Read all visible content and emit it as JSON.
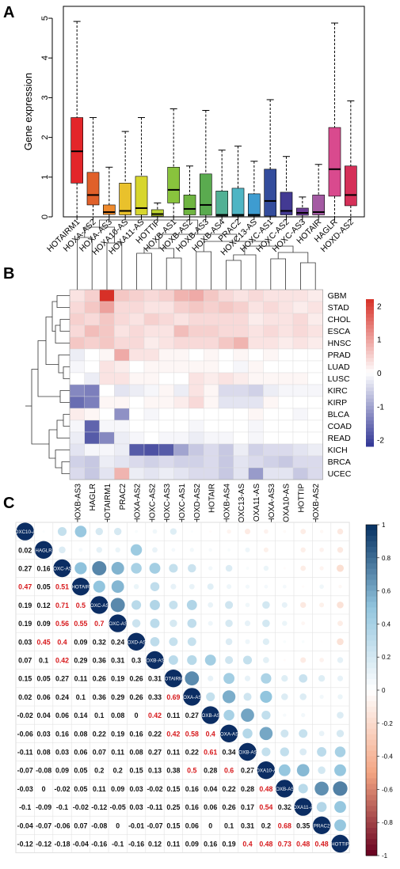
{
  "panels": {
    "a": "A",
    "b": "B",
    "c": "C"
  },
  "chart_data": [
    {
      "type": "box",
      "ylabel": "Gene expression",
      "ylim": [
        0,
        5.3
      ],
      "yticks": [
        0,
        1,
        2,
        3,
        4,
        5
      ],
      "categories": [
        "HOTAIRM1",
        "HOXA-AS2",
        "HOXA-AS3",
        "HOXA10-AS",
        "HOXA11-AS",
        "HOTTIP",
        "HOXB-AS1",
        "HOXB-AS2",
        "HOXB-AS3",
        "HOXB-AS4",
        "PRAC2",
        "HOXC13-AS",
        "HOXC-AS1",
        "HOXC-AS2",
        "HOXC-AS3",
        "HOTAIR",
        "HAGLR",
        "HOXD-AS2"
      ],
      "colors": [
        "#e3262a",
        "#e0602a",
        "#ef8a2c",
        "#e9c12c",
        "#d7d62d",
        "#bdd431",
        "#89c33d",
        "#6fb541",
        "#5aab4f",
        "#52b195",
        "#4fb5c4",
        "#3e9cd0",
        "#334c9c",
        "#433a93",
        "#6c3d96",
        "#a45aa3",
        "#d94a8e",
        "#d53058"
      ],
      "q1": [
        0.85,
        0.3,
        0.06,
        0.05,
        0.05,
        0.02,
        0.35,
        0.05,
        0.04,
        0.02,
        0.02,
        0.02,
        0.02,
        0.05,
        0.04,
        0.05,
        0.52,
        0.28
      ],
      "median": [
        1.65,
        0.55,
        0.12,
        0.15,
        0.22,
        0.07,
        0.68,
        0.2,
        0.3,
        0.05,
        0.05,
        0.05,
        0.4,
        0.15,
        0.1,
        0.12,
        1.2,
        0.55
      ],
      "q3": [
        2.5,
        1.12,
        0.3,
        0.85,
        1.02,
        0.18,
        1.25,
        0.55,
        1.08,
        0.65,
        0.72,
        0.58,
        1.2,
        0.62,
        0.22,
        0.55,
        2.25,
        1.28
      ],
      "whisker_low": [
        0,
        0,
        0,
        0,
        0,
        0,
        0,
        0,
        0,
        0,
        0,
        0,
        0,
        0,
        0,
        0,
        0,
        0
      ],
      "whisker_high": [
        4.92,
        2.5,
        1.25,
        2.15,
        2.5,
        0.35,
        2.72,
        1.28,
        2.68,
        1.68,
        1.78,
        1.4,
        2.95,
        1.52,
        0.5,
        1.32,
        4.88,
        2.92
      ]
    },
    {
      "type": "heatmap",
      "columns": [
        "HOXB-AS3",
        "HAGLR",
        "HOTAIRM1",
        "PRAC2",
        "HOXA-AS2",
        "HOXC-AS2",
        "HOXC-AS3",
        "HOXC-AS1",
        "HOXD-AS2",
        "HOTAIR",
        "HOXB-AS4",
        "HOXC13-AS",
        "HOXA11-AS",
        "HOXA-AS3",
        "HOXA10-AS",
        "HOTTIP",
        "HOXB-AS2"
      ],
      "rows": [
        "GBM",
        "STAD",
        "CHOL",
        "ESCA",
        "HNSC",
        "PRAD",
        "LUAD",
        "LUSC",
        "KIRC",
        "KIRP",
        "BLCA",
        "COAD",
        "READ",
        "KICH",
        "BRCA",
        "UCEC"
      ],
      "legend_ticks": [
        2,
        1,
        0,
        -1,
        -2
      ],
      "legend_range": [
        -2.2,
        2.2
      ],
      "values": [
        [
          0.3,
          0.5,
          2.2,
          0.6,
          0.5,
          0.4,
          0.5,
          0.8,
          0.9,
          0.6,
          0.4,
          0.3,
          0.4,
          0.3,
          0.3,
          0.3,
          0.2
        ],
        [
          0.4,
          0.6,
          1.0,
          0.4,
          0.4,
          0.3,
          0.3,
          0.5,
          0.6,
          0.5,
          0.6,
          0.5,
          0.3,
          0.4,
          0.3,
          0.2,
          0.3
        ],
        [
          0.5,
          0.4,
          0.6,
          0.4,
          0.3,
          0.5,
          0.4,
          0.3,
          0.4,
          0.4,
          0.4,
          0.4,
          0.2,
          0.3,
          0.3,
          0.4,
          0.2
        ],
        [
          0.4,
          0.7,
          0.6,
          0.3,
          0.4,
          0.3,
          0.3,
          0.7,
          0.5,
          0.5,
          0.4,
          0.4,
          0.3,
          0.4,
          0.3,
          0.4,
          0.3
        ],
        [
          0.6,
          0.5,
          0.6,
          0.4,
          0.4,
          0.2,
          0.3,
          0.4,
          0.4,
          0.4,
          0.6,
          0.8,
          0.3,
          0.3,
          0.2,
          0.3,
          0.2
        ],
        [
          -0.2,
          0.0,
          0.1,
          0.9,
          0.3,
          0.3,
          0.1,
          0.1,
          0.0,
          0.1,
          0.0,
          0.1,
          0.0,
          0.1,
          0.0,
          0.0,
          0.0
        ],
        [
          -0.1,
          0.0,
          0.3,
          0.2,
          0.0,
          0.1,
          0.1,
          0.1,
          0.1,
          0.1,
          0.0,
          -0.1,
          0.1,
          0.0,
          0.0,
          0.0,
          0.0
        ],
        [
          0.0,
          -0.2,
          0.3,
          0.3,
          0.1,
          0.1,
          0.0,
          0.0,
          0.3,
          0.2,
          0.3,
          0.2,
          0.1,
          0.1,
          0.1,
          0.1,
          0.0
        ],
        [
          -1.3,
          -1.4,
          0.0,
          -0.3,
          -0.2,
          -0.1,
          0.1,
          -0.2,
          0.3,
          0.1,
          -0.4,
          -0.4,
          -0.5,
          -0.2,
          -0.1,
          -0.1,
          -0.1
        ],
        [
          -1.6,
          -1.4,
          0.1,
          0.1,
          0.0,
          0.1,
          0.1,
          0.2,
          0.4,
          0.1,
          -0.3,
          -0.3,
          -0.3,
          0.1,
          0.0,
          0.0,
          0.0
        ],
        [
          0.2,
          0.1,
          0.0,
          -1.2,
          0.0,
          -0.1,
          0.0,
          0.0,
          0.0,
          0.0,
          0.0,
          0.0,
          0.1,
          0.0,
          0.0,
          -0.1,
          0.0
        ],
        [
          -0.1,
          -1.7,
          -0.1,
          -0.1,
          0.0,
          0.0,
          0.0,
          0.0,
          -0.1,
          0.0,
          0.0,
          0.0,
          -0.1,
          0.0,
          0.0,
          0.0,
          0.0
        ],
        [
          -0.2,
          -1.8,
          -1.3,
          -0.2,
          -0.1,
          0.0,
          -0.1,
          -0.1,
          -0.2,
          -0.1,
          -0.1,
          0.0,
          -0.1,
          0.0,
          0.0,
          0.0,
          0.0
        ],
        [
          -0.3,
          -0.1,
          -0.1,
          -0.2,
          -1.8,
          -1.9,
          -1.8,
          -1.0,
          -0.6,
          -0.4,
          -0.6,
          -0.2,
          -0.5,
          -0.4,
          -0.4,
          -0.3,
          -0.2
        ],
        [
          -0.5,
          -0.6,
          -0.2,
          -0.3,
          -0.4,
          -0.5,
          -0.4,
          -0.5,
          -0.5,
          -0.4,
          -0.6,
          -0.3,
          -0.4,
          -0.5,
          -0.6,
          -0.4,
          -0.4
        ],
        [
          -0.4,
          -0.6,
          -0.3,
          0.8,
          -0.2,
          -0.3,
          -0.2,
          -0.3,
          -0.4,
          -0.4,
          -0.6,
          -0.3,
          -1.1,
          -0.3,
          -0.3,
          -0.6,
          -0.4
        ]
      ]
    },
    {
      "type": "correlogram",
      "variables": [
        "HOXC10-AS",
        "HAGLR",
        "HOXC-AS1",
        "HOTAIR",
        "HOXC-AS2",
        "HOXC-AS3",
        "HOXD-AS2",
        "HOXB-AS1",
        "HOTAIRM1",
        "HOXA-AS2",
        "HOXB-AS2",
        "HOXA-AS3",
        "HOXB-AS3",
        "HOXA10-AS",
        "HOXB-AS4",
        "HOXA11-AS",
        "PRAC2",
        "HOTTIP"
      ],
      "legend_ticks": [
        1,
        0.8,
        0.6,
        0.4,
        0.2,
        0,
        -0.2,
        -0.4,
        -0.6,
        -0.8,
        -1
      ],
      "lower": [
        [],
        [
          0.02
        ],
        [
          0.27,
          0.16
        ],
        [
          0.47,
          0.05,
          0.51
        ],
        [
          0.19,
          0.12,
          0.71,
          0.5
        ],
        [
          0.19,
          0.09,
          0.56,
          0.55,
          0.7
        ],
        [
          0.03,
          0.45,
          0.4,
          0.09,
          0.32,
          0.24
        ],
        [
          0.07,
          0.1,
          0.42,
          0.29,
          0.36,
          0.31,
          0.3
        ],
        [
          0.15,
          0.05,
          0.27,
          0.11,
          0.26,
          0.19,
          0.26,
          0.31
        ],
        [
          0.02,
          0.06,
          0.24,
          0.1,
          0.36,
          0.29,
          0.26,
          0.33,
          0.69
        ],
        [
          -0.02,
          0.04,
          0.06,
          0.14,
          0.1,
          0.08,
          0,
          0.42,
          0.11,
          0.27
        ],
        [
          -0.06,
          0.03,
          0.16,
          0.08,
          0.22,
          0.19,
          0.16,
          0.22,
          0.42,
          0.58,
          0.4
        ],
        [
          -0.11,
          0.08,
          0.03,
          0.06,
          0.07,
          0.11,
          0.08,
          0.27,
          0.11,
          0.22,
          0.61,
          0.34
        ],
        [
          -0.07,
          -0.08,
          0.09,
          0.05,
          0.2,
          0.2,
          0.15,
          0.13,
          0.38,
          0.5,
          0.28,
          0.6,
          0.27
        ],
        [
          -0.03,
          0,
          -0.02,
          0.05,
          0.11,
          0.09,
          0.03,
          -0.02,
          0.15,
          0.16,
          0.04,
          0.22,
          0.28,
          0.48
        ],
        [
          -0.1,
          -0.09,
          -0.1,
          -0.02,
          -0.12,
          -0.05,
          0.03,
          -0.11,
          0.25,
          0.16,
          0.06,
          0.26,
          0.17,
          0.54,
          0.32
        ],
        [
          -0.04,
          -0.07,
          -0.06,
          0.07,
          -0.08,
          0,
          -0.01,
          -0.07,
          0.15,
          0.06,
          0,
          0.1,
          0.31,
          0.2,
          0.68,
          0.35
        ],
        [
          -0.12,
          -0.12,
          -0.18,
          -0.04,
          -0.16,
          -0.1,
          -0.16,
          0.12,
          0.11,
          0.09,
          0.16,
          0.19,
          0.4,
          0.48,
          0.73,
          0.48,
          0.48
        ]
      ]
    }
  ]
}
